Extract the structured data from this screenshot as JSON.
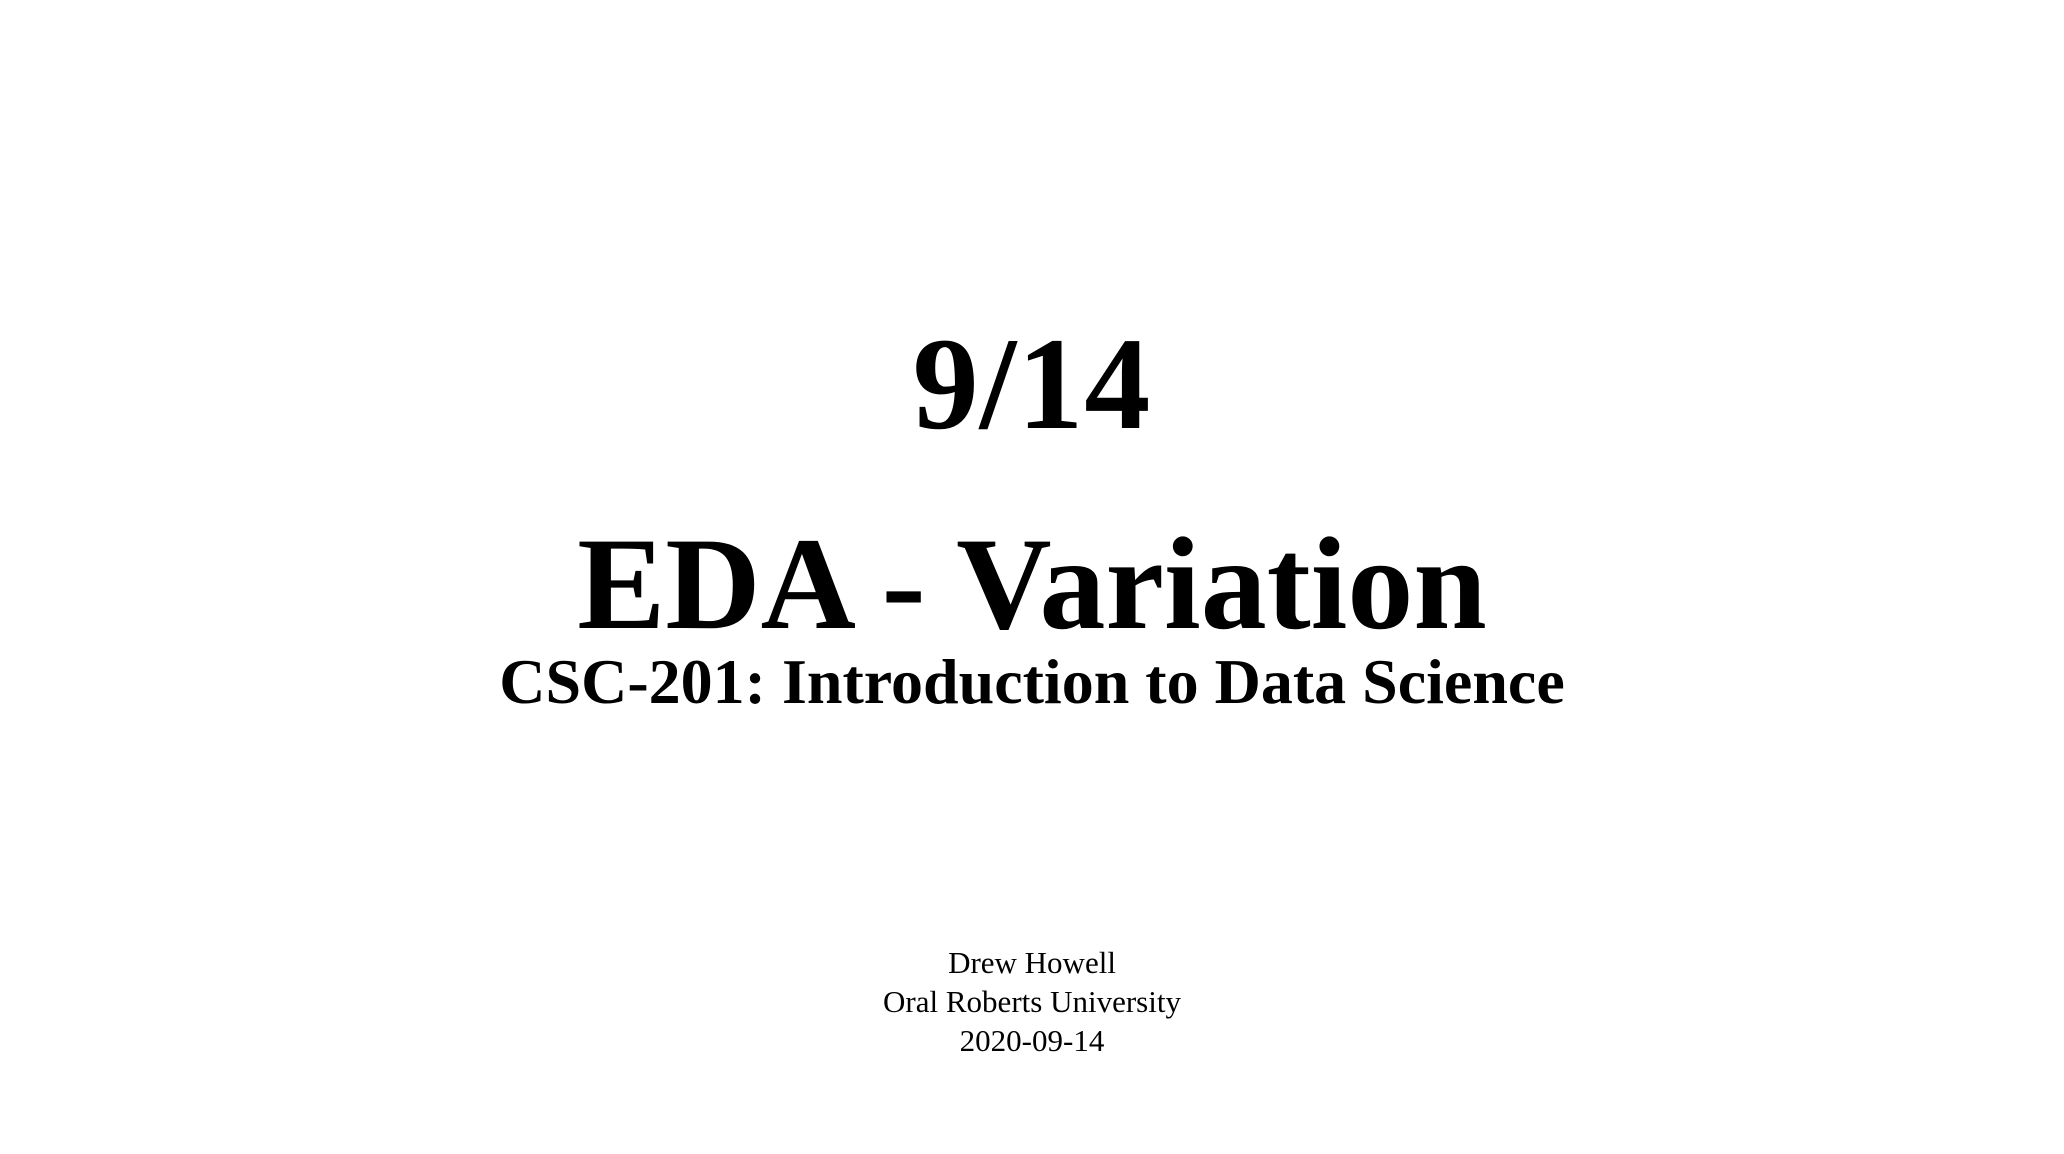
{
  "slide": {
    "date_title": "9/14",
    "main_title": "EDA - Variation",
    "subtitle": "CSC-201: Introduction to Data Science",
    "author": "Drew Howell",
    "institution": "Oral Roberts University",
    "date": "2020-09-14"
  }
}
